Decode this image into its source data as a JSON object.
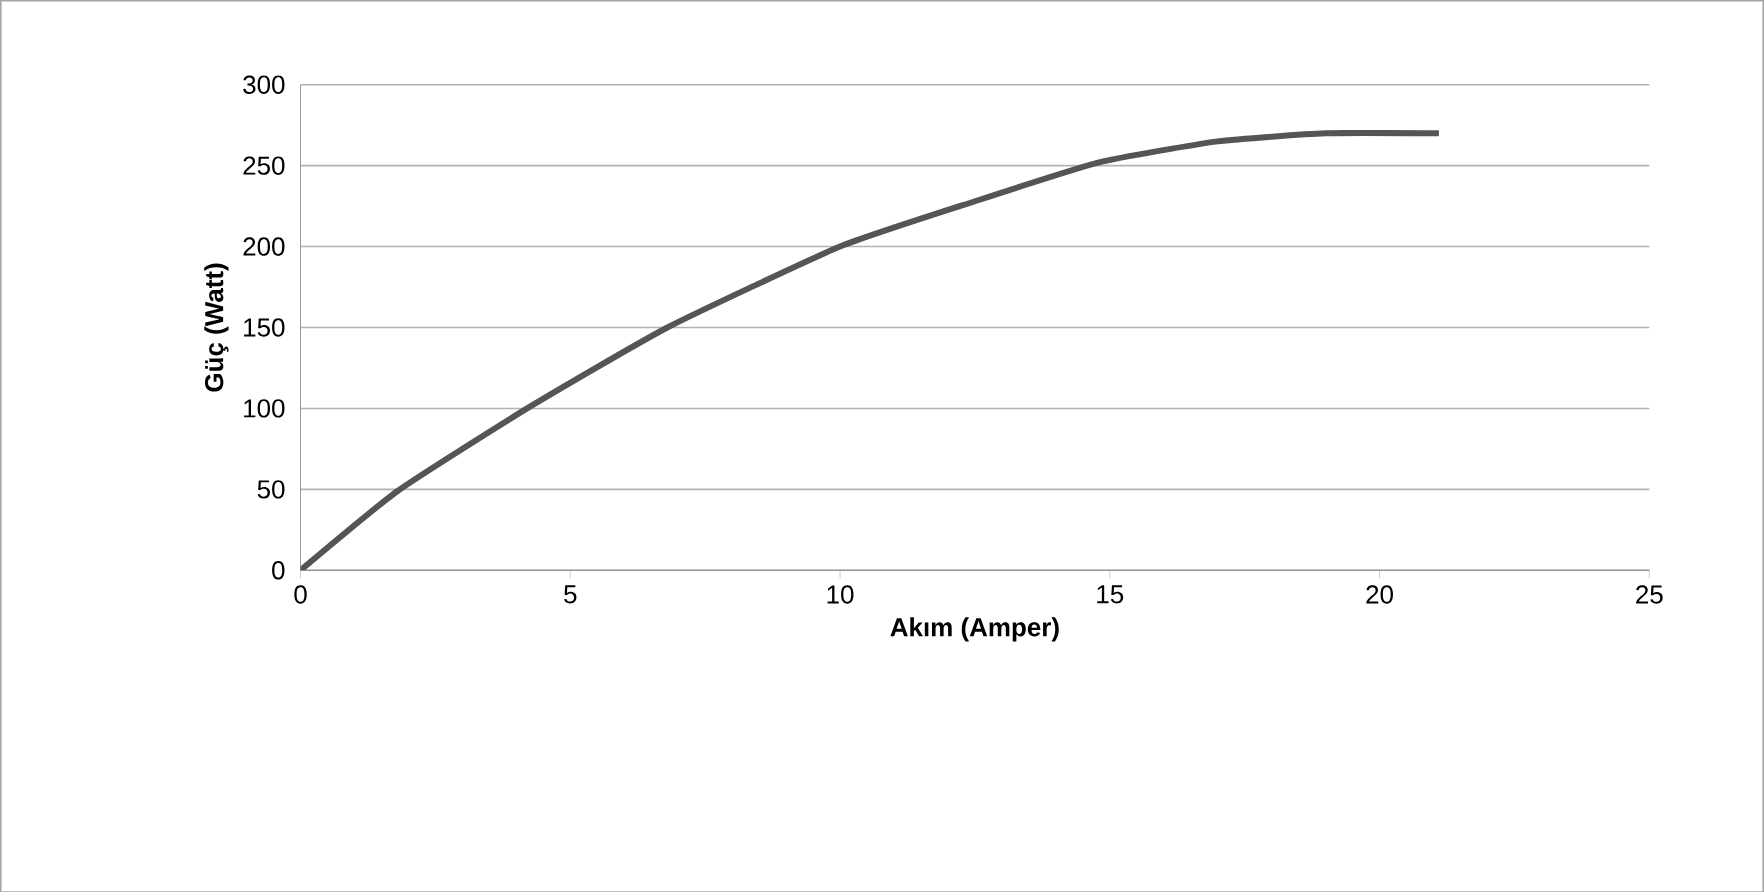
{
  "chart_data": {
    "type": "line",
    "xlabel": "Akım (Amper)",
    "ylabel": "Güç (Watt)",
    "x": [
      0,
      1.8,
      4.2,
      6.8,
      10,
      12.5,
      14.8,
      17,
      19,
      21.1
    ],
    "values": [
      0,
      49,
      100,
      150,
      200,
      228,
      252,
      265,
      270,
      270
    ],
    "color": "#555555",
    "xlim": [
      0,
      25
    ],
    "xticks": [
      0,
      5,
      10,
      15,
      20,
      25
    ],
    "ylim": [
      0,
      300
    ],
    "yticks": [
      0,
      50,
      100,
      150,
      200,
      250,
      300
    ],
    "grid": "y",
    "marker": "none",
    "line_style": "solid"
  }
}
